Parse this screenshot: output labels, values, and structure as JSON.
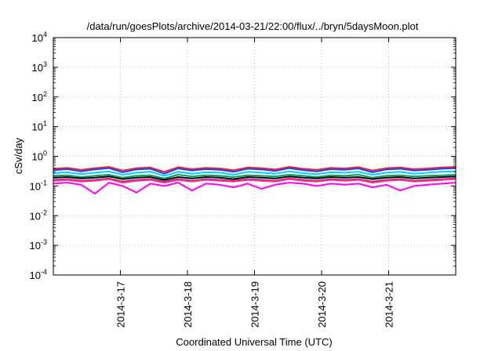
{
  "chart_data": {
    "type": "line",
    "title": "/data/run/goesPlots/archive/2014-03-21/22:00/flux/../bryn/5daysMoon.plot",
    "xlabel": "Coordinated Universal Time (UTC)",
    "ylabel": "cSv/day",
    "y_scale": "log",
    "ylim": [
      0.0001,
      10000
    ],
    "y_ticks": [
      {
        "base": "10",
        "exp": "-4",
        "value": 0.0001
      },
      {
        "base": "10",
        "exp": "-3",
        "value": 0.001
      },
      {
        "base": "10",
        "exp": "-2",
        "value": 0.01
      },
      {
        "base": "10",
        "exp": "-1",
        "value": 0.1
      },
      {
        "base": "10",
        "exp": "0",
        "value": 1
      },
      {
        "base": "10",
        "exp": "1",
        "value": 10
      },
      {
        "base": "10",
        "exp": "2",
        "value": 100
      },
      {
        "base": "10",
        "exp": "3",
        "value": 1000
      },
      {
        "base": "10",
        "exp": "4",
        "value": 10000
      }
    ],
    "xlim": [
      "2014-03-16T00:00",
      "2014-03-22T00:00"
    ],
    "x_ticks": [
      {
        "label": "2014-3-17",
        "value": "2014-03-17T00:00"
      },
      {
        "label": "2014-3-18",
        "value": "2014-03-18T00:00"
      },
      {
        "label": "2014-3-19",
        "value": "2014-03-19T00:00"
      },
      {
        "label": "2014-3-20",
        "value": "2014-03-20T00:00"
      },
      {
        "label": "2014-3-21",
        "value": "2014-03-21T00:00"
      }
    ],
    "grid": true,
    "legend": "none",
    "series": [
      {
        "color": "#ff2020",
        "values": [
          0.38,
          0.41,
          0.35,
          0.4,
          0.44,
          0.33,
          0.4,
          0.42,
          0.3,
          0.43,
          0.37,
          0.41,
          0.39,
          0.34,
          0.42,
          0.4,
          0.36,
          0.44,
          0.38,
          0.35,
          0.41,
          0.39,
          0.43,
          0.33,
          0.4,
          0.42,
          0.37,
          0.39,
          0.42,
          0.44
        ]
      },
      {
        "color": "#1f3fff",
        "values": [
          0.34,
          0.37,
          0.31,
          0.36,
          0.4,
          0.29,
          0.36,
          0.38,
          0.26,
          0.39,
          0.33,
          0.37,
          0.35,
          0.3,
          0.38,
          0.36,
          0.32,
          0.4,
          0.34,
          0.31,
          0.37,
          0.35,
          0.39,
          0.29,
          0.36,
          0.38,
          0.33,
          0.35,
          0.38,
          0.4
        ]
      },
      {
        "color": "#00d0ff",
        "values": [
          0.27,
          0.29,
          0.25,
          0.28,
          0.31,
          0.24,
          0.28,
          0.3,
          0.22,
          0.3,
          0.26,
          0.29,
          0.28,
          0.24,
          0.3,
          0.28,
          0.26,
          0.31,
          0.27,
          0.25,
          0.29,
          0.28,
          0.3,
          0.24,
          0.28,
          0.3,
          0.26,
          0.28,
          0.3,
          0.31
        ]
      },
      {
        "color": "#00a060",
        "values": [
          0.22,
          0.23,
          0.2,
          0.22,
          0.24,
          0.19,
          0.22,
          0.23,
          0.18,
          0.24,
          0.21,
          0.23,
          0.22,
          0.2,
          0.23,
          0.22,
          0.21,
          0.24,
          0.22,
          0.2,
          0.23,
          0.22,
          0.24,
          0.19,
          0.22,
          0.23,
          0.21,
          0.22,
          0.23,
          0.24
        ]
      },
      {
        "color": "#000000",
        "values": [
          0.19,
          0.2,
          0.18,
          0.19,
          0.21,
          0.17,
          0.19,
          0.2,
          0.16,
          0.2,
          0.18,
          0.2,
          0.19,
          0.17,
          0.2,
          0.19,
          0.18,
          0.21,
          0.19,
          0.18,
          0.2,
          0.19,
          0.2,
          0.17,
          0.19,
          0.2,
          0.18,
          0.19,
          0.2,
          0.21
        ]
      },
      {
        "color": "#9a2a8a",
        "values": [
          0.16,
          0.17,
          0.15,
          0.16,
          0.18,
          0.14,
          0.16,
          0.17,
          0.14,
          0.17,
          0.15,
          0.17,
          0.16,
          0.15,
          0.17,
          0.16,
          0.15,
          0.18,
          0.16,
          0.15,
          0.17,
          0.16,
          0.17,
          0.14,
          0.16,
          0.17,
          0.15,
          0.16,
          0.17,
          0.18
        ]
      },
      {
        "color": "#ff2a8a",
        "values": [
          0.15,
          0.16,
          0.14,
          0.15,
          0.17,
          0.13,
          0.15,
          0.16,
          0.13,
          0.16,
          0.14,
          0.16,
          0.15,
          0.14,
          0.16,
          0.15,
          0.14,
          0.17,
          0.15,
          0.14,
          0.16,
          0.15,
          0.16,
          0.13,
          0.15,
          0.16,
          0.14,
          0.15,
          0.16,
          0.17
        ]
      },
      {
        "color": "#ff00ff",
        "values": [
          0.12,
          0.13,
          0.11,
          0.055,
          0.13,
          0.1,
          0.06,
          0.12,
          0.1,
          0.13,
          0.07,
          0.12,
          0.11,
          0.09,
          0.12,
          0.08,
          0.11,
          0.13,
          0.12,
          0.1,
          0.12,
          0.11,
          0.12,
          0.09,
          0.11,
          0.07,
          0.1,
          0.11,
          0.12,
          0.13
        ]
      }
    ]
  }
}
